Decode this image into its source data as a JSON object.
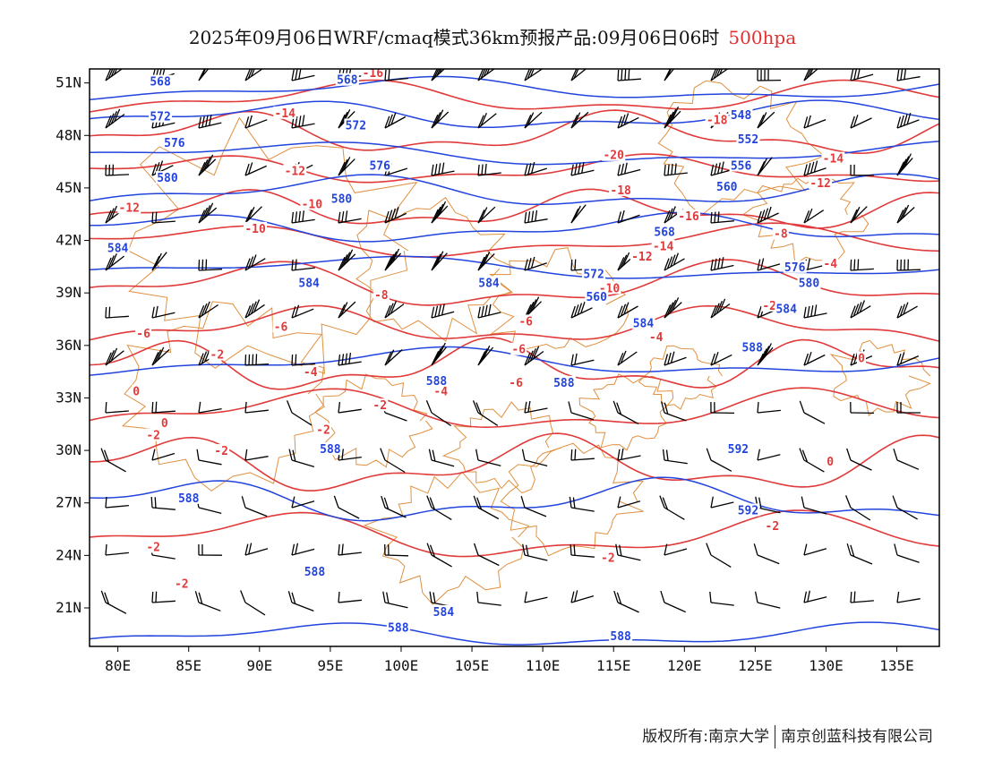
{
  "title": {
    "main": "2025年09月06日WRF/cmaq模式36km预报产品:09月06日06时",
    "level": "500hpa"
  },
  "footer": {
    "copyright": "版权所有:南京大学",
    "company": "南京创蓝科技有限公司"
  },
  "colors": {
    "height_contour": "#2244dd",
    "temperature_contour": "#e03a3a",
    "boundary": "#e09040",
    "wind_barb": "#000000",
    "level_text": "#e03030"
  },
  "map": {
    "lon_range": [
      78,
      138
    ],
    "lat_range": [
      18.8,
      51.8
    ],
    "lon_ticks": [
      80,
      85,
      90,
      95,
      100,
      105,
      110,
      115,
      120,
      125,
      130,
      135
    ],
    "lon_labels": [
      "80E",
      "85E",
      "90E",
      "95E",
      "100E",
      "105E",
      "110E",
      "115E",
      "120E",
      "125E",
      "130E",
      "135E"
    ],
    "lat_ticks": [
      51,
      48,
      45,
      42,
      39,
      36,
      33,
      30,
      27,
      24,
      21
    ],
    "lat_labels": [
      "51N",
      "48N",
      "45N",
      "42N",
      "39N",
      "36N",
      "33N",
      "30N",
      "27N",
      "24N",
      "21N"
    ],
    "height_labels": [
      {
        "text": "568",
        "lon": 83.0,
        "lat": 51.0
      },
      {
        "text": "568",
        "lon": 96.2,
        "lat": 51.1
      },
      {
        "text": "572",
        "lon": 83.0,
        "lat": 49.0
      },
      {
        "text": "572",
        "lon": 96.8,
        "lat": 48.5
      },
      {
        "text": "576",
        "lon": 84.0,
        "lat": 47.5
      },
      {
        "text": "576",
        "lon": 98.5,
        "lat": 46.2
      },
      {
        "text": "580",
        "lon": 83.5,
        "lat": 45.5
      },
      {
        "text": "580",
        "lon": 95.8,
        "lat": 44.3
      },
      {
        "text": "584",
        "lon": 80.0,
        "lat": 41.5
      },
      {
        "text": "584",
        "lon": 93.5,
        "lat": 39.5
      },
      {
        "text": "584",
        "lon": 106.2,
        "lat": 39.5
      },
      {
        "text": "584",
        "lon": 117.1,
        "lat": 37.2
      },
      {
        "text": "584",
        "lon": 127.2,
        "lat": 38.0
      },
      {
        "text": "588",
        "lon": 102.5,
        "lat": 33.9
      },
      {
        "text": "588",
        "lon": 111.5,
        "lat": 33.8
      },
      {
        "text": "588",
        "lon": 95.0,
        "lat": 30.0
      },
      {
        "text": "588",
        "lon": 85.0,
        "lat": 27.2
      },
      {
        "text": "588",
        "lon": 124.8,
        "lat": 35.8
      },
      {
        "text": "588",
        "lon": 93.9,
        "lat": 23.0
      },
      {
        "text": "588",
        "lon": 99.8,
        "lat": 19.8
      },
      {
        "text": "588",
        "lon": 115.5,
        "lat": 19.3
      },
      {
        "text": "592",
        "lon": 123.8,
        "lat": 30.0
      },
      {
        "text": "592",
        "lon": 124.5,
        "lat": 26.5
      },
      {
        "text": "548",
        "lon": 124.0,
        "lat": 49.1
      },
      {
        "text": "552",
        "lon": 124.5,
        "lat": 47.7
      },
      {
        "text": "556",
        "lon": 124.0,
        "lat": 46.2
      },
      {
        "text": "560",
        "lon": 123.0,
        "lat": 45.0
      },
      {
        "text": "568",
        "lon": 118.6,
        "lat": 42.4
      },
      {
        "text": "572",
        "lon": 113.6,
        "lat": 40.0
      },
      {
        "text": "576",
        "lon": 127.8,
        "lat": 40.4
      },
      {
        "text": "580",
        "lon": 128.8,
        "lat": 39.5
      },
      {
        "text": "560",
        "lon": 113.8,
        "lat": 38.7
      },
      {
        "text": "584",
        "lon": 103.0,
        "lat": 20.7
      }
    ],
    "temperature_labels": [
      {
        "text": "-16",
        "lon": 98.0,
        "lat": 51.5
      },
      {
        "text": "-14",
        "lon": 91.8,
        "lat": 49.2
      },
      {
        "text": "-12",
        "lon": 92.5,
        "lat": 45.9
      },
      {
        "text": "-12",
        "lon": 80.8,
        "lat": 43.8
      },
      {
        "text": "-10",
        "lon": 93.7,
        "lat": 44.0
      },
      {
        "text": "-10",
        "lon": 89.7,
        "lat": 42.6
      },
      {
        "text": "-8",
        "lon": 98.6,
        "lat": 38.8
      },
      {
        "text": "-6",
        "lon": 81.8,
        "lat": 36.6
      },
      {
        "text": "-6",
        "lon": 91.5,
        "lat": 37.0
      },
      {
        "text": "-6",
        "lon": 108.3,
        "lat": 35.7
      },
      {
        "text": "-6",
        "lon": 108.8,
        "lat": 37.3
      },
      {
        "text": "-4",
        "lon": 93.6,
        "lat": 34.4
      },
      {
        "text": "-4",
        "lon": 102.8,
        "lat": 33.3
      },
      {
        "text": "-4",
        "lon": 118.0,
        "lat": 36.4
      },
      {
        "text": "-2",
        "lon": 87.0,
        "lat": 35.4
      },
      {
        "text": "-2",
        "lon": 98.5,
        "lat": 32.5
      },
      {
        "text": "-2",
        "lon": 94.5,
        "lat": 31.1
      },
      {
        "text": "-2",
        "lon": 87.3,
        "lat": 29.9
      },
      {
        "text": "-2",
        "lon": 82.5,
        "lat": 30.8
      },
      {
        "text": "-2",
        "lon": 82.5,
        "lat": 24.4
      },
      {
        "text": "-2",
        "lon": 84.5,
        "lat": 22.3
      },
      {
        "text": "-2",
        "lon": 114.6,
        "lat": 23.8
      },
      {
        "text": "-2",
        "lon": 126.2,
        "lat": 25.6
      },
      {
        "text": "-2",
        "lon": 126.0,
        "lat": 38.2
      },
      {
        "text": "0",
        "lon": 81.3,
        "lat": 33.3
      },
      {
        "text": "0",
        "lon": 83.3,
        "lat": 31.5
      },
      {
        "text": "0",
        "lon": 130.3,
        "lat": 29.3
      },
      {
        "text": "0",
        "lon": 132.5,
        "lat": 35.2
      },
      {
        "text": "-18",
        "lon": 122.3,
        "lat": 48.8
      },
      {
        "text": "-20",
        "lon": 115.0,
        "lat": 46.8
      },
      {
        "text": "-18",
        "lon": 115.5,
        "lat": 44.8
      },
      {
        "text": "-16",
        "lon": 120.3,
        "lat": 43.3
      },
      {
        "text": "-14",
        "lon": 118.5,
        "lat": 41.6
      },
      {
        "text": "-12",
        "lon": 117.0,
        "lat": 41.0
      },
      {
        "text": "-10",
        "lon": 114.7,
        "lat": 39.2
      },
      {
        "text": "-8",
        "lon": 126.8,
        "lat": 42.3
      },
      {
        "text": "-14",
        "lon": 130.5,
        "lat": 46.6
      },
      {
        "text": "-12",
        "lon": 129.6,
        "lat": 45.2
      },
      {
        "text": "-4",
        "lon": 130.3,
        "lat": 40.6
      },
      {
        "text": "-6",
        "lon": 108.1,
        "lat": 33.8
      }
    ]
  }
}
